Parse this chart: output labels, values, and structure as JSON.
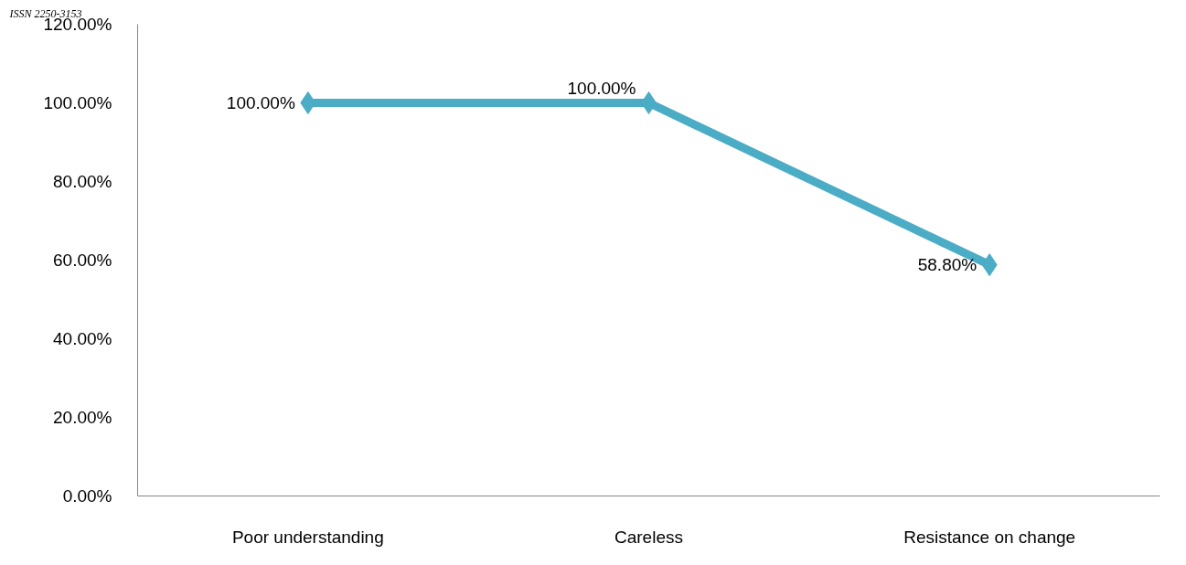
{
  "chart_data": {
    "type": "line",
    "annotations": [
      "ISSN 2250-3153"
    ],
    "categories": [
      "Poor understanding",
      "Careless",
      "Resistance on change"
    ],
    "series": [
      {
        "color": "#4bacc6",
        "values": [
          100,
          100,
          58.8
        ],
        "value_labels": [
          "100.00%",
          "100.00%",
          "58.80%"
        ]
      }
    ],
    "ylim": [
      0,
      120
    ],
    "yticks": [
      {
        "value": 0,
        "label": "0.00%"
      },
      {
        "value": 20,
        "label": "20.00%"
      },
      {
        "value": 40,
        "label": "40.00%"
      },
      {
        "value": 60,
        "label": "60.00%"
      },
      {
        "value": 80,
        "label": "80.00%"
      },
      {
        "value": 100,
        "label": "100.00%"
      },
      {
        "value": 120,
        "label": "120.00%"
      }
    ],
    "grid": false,
    "marker": "diamond",
    "line_style": "solid"
  }
}
